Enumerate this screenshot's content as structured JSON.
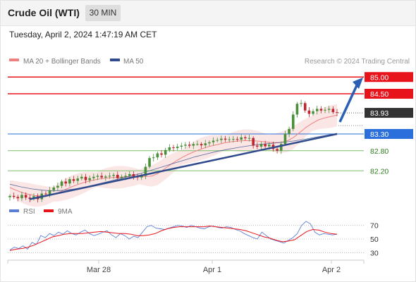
{
  "header": {
    "title": "Crude Oil (WTI)",
    "timeframe": "30 MIN",
    "timestamp": "Tuesday, April 2, 2024 1:47:19 AM CET"
  },
  "legend": {
    "ma20_label": "MA 20 + Bollinger Bands",
    "ma50_label": "MA 50",
    "watermark": "Research © 2024 Trading Central",
    "rsi_label": "RSI",
    "ma9_label": "9MA"
  },
  "colors": {
    "accent_red": "#e8141c",
    "ma20": "#f08080",
    "ma50": "#2f4b8c",
    "blue_level": "#2a6fdb",
    "support_green": "#7cbf6a",
    "price_box": "#333333",
    "rsi_line": "#5b7fd6",
    "rsi_ma": "#e8141c"
  },
  "chart_data": {
    "type": "line",
    "title": "Crude Oil (WTI)",
    "timeframe": "30 MIN",
    "y_range": [
      81.3,
      85.3
    ],
    "current_price": 83.93,
    "levels": [
      {
        "value": 85.0,
        "label": "85.00",
        "kind": "resistance"
      },
      {
        "value": 84.5,
        "label": "84.50",
        "kind": "resistance"
      },
      {
        "value": 83.93,
        "label": "83.93",
        "kind": "last"
      },
      {
        "value": 83.3,
        "label": "83.30",
        "kind": "pivot"
      },
      {
        "value": 82.8,
        "label": "82.80",
        "kind": "support"
      },
      {
        "value": 82.2,
        "label": "82.20",
        "kind": "support"
      }
    ],
    "price_series": [
      81.45,
      81.42,
      81.38,
      81.48,
      81.4,
      81.36,
      81.44,
      81.35,
      81.52,
      81.5,
      81.62,
      81.7,
      81.75,
      81.88,
      81.82,
      81.95,
      81.9,
      81.97,
      82.02,
      81.92,
      81.98,
      82.02,
      82.05,
      82.0,
      82.03,
      82.05,
      82.08,
      81.98,
      82.02,
      82.05,
      82.1,
      82.03,
      82.0,
      82.05,
      82.32,
      82.58,
      82.6,
      82.72,
      82.68,
      82.82,
      82.9,
      82.88,
      82.92,
      82.95,
      82.98,
      82.95,
      83.0,
      83.0,
      82.96,
      83.02,
      83.05,
      83.1,
      83.12,
      83.16,
      83.13,
      83.14,
      83.15,
      83.13,
      83.2,
      83.17,
      83.18,
      82.95,
      82.92,
      83.0,
      82.93,
      82.98,
      82.85,
      82.8,
      83.0,
      83.3,
      83.45,
      83.88,
      84.2,
      84.22,
      84.0,
      83.9,
      83.98,
      84.05,
      84.0,
      84.02,
      84.05,
      83.95,
      83.93
    ],
    "ma20_series": [
      81.7,
      81.62,
      81.55,
      81.5,
      81.46,
      81.45,
      81.46,
      81.5,
      81.56,
      81.64,
      81.72,
      81.79,
      81.85,
      81.9,
      81.94,
      81.97,
      81.99,
      82.0,
      82.01,
      82.02,
      82.02,
      82.02,
      82.03,
      82.04,
      82.12,
      82.25,
      82.38,
      82.5,
      82.61,
      82.7,
      82.78,
      82.85,
      82.91,
      82.96,
      83.0,
      83.04,
      83.07,
      83.09,
      83.1,
      83.1,
      83.09,
      83.07,
      83.05,
      83.04,
      83.05,
      83.1,
      83.2,
      83.35,
      83.5,
      83.62,
      83.72,
      83.78,
      83.82,
      83.86
    ],
    "ma50_series": [
      81.8,
      81.72,
      81.66,
      81.62,
      81.6,
      81.62,
      81.66,
      81.72,
      81.8,
      81.88,
      81.96,
      82.04,
      82.12,
      82.22,
      82.32,
      82.42,
      82.52,
      82.62,
      82.7,
      82.78,
      82.84,
      82.9,
      82.95,
      82.99,
      83.02,
      83.05,
      83.09,
      83.14,
      83.2,
      83.26,
      83.32
    ],
    "trendline": {
      "from": 81.35,
      "to": 83.3
    },
    "forecast_arrow": {
      "from": 83.3,
      "to": 84.9
    },
    "x_tick_labels": [
      "Mar 28",
      "Apr 1",
      "Apr 2"
    ],
    "rsi": {
      "levels": [
        70,
        50,
        30
      ],
      "series": [
        34,
        38,
        36,
        40,
        35,
        45,
        42,
        55,
        52,
        58,
        55,
        60,
        57,
        62,
        58,
        56,
        60,
        63,
        58,
        55,
        57,
        60,
        62,
        56,
        52,
        58,
        55,
        50,
        54,
        52,
        60,
        68,
        70,
        66,
        65,
        64,
        66,
        68,
        70,
        69,
        67,
        70,
        68,
        66,
        65,
        68,
        69,
        67,
        66,
        68,
        67,
        64,
        62,
        58,
        55,
        52,
        50,
        60,
        55,
        50,
        48,
        46,
        44,
        48,
        52,
        58,
        70,
        76,
        72,
        60,
        56,
        58,
        57,
        56,
        57
      ],
      "ma_series": [
        33,
        35,
        36,
        38,
        41,
        45,
        49,
        53,
        55,
        57,
        58,
        58,
        58,
        59,
        60,
        61,
        60,
        59,
        58,
        58,
        57,
        55,
        55,
        56,
        58,
        62,
        65,
        67,
        68,
        68,
        68,
        68,
        68,
        69,
        68,
        67,
        66,
        65,
        64,
        62,
        59,
        56,
        53,
        51,
        48,
        46,
        47,
        49,
        55,
        61,
        64,
        63,
        60,
        58,
        57
      ]
    }
  }
}
